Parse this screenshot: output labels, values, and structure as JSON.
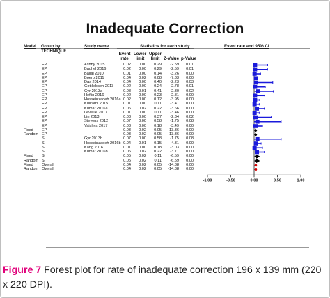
{
  "title": "Inadequate Correction",
  "headers": {
    "model": "Model",
    "group_by": "Group by",
    "technique": "TECHNIQUE",
    "study_name": "Study name",
    "stats_title": "Statistics for each study",
    "event_rate": "Event rate",
    "lower_limit": "Lower limit",
    "upper_limit": "Upper limit",
    "z_value": "Z-Value",
    "p_value": "p-Value",
    "plot_title": "Event rate and 95% CI"
  },
  "chart_data": {
    "type": "forest",
    "xlim": [
      -1.0,
      1.0
    ],
    "x_ticks": [
      "-1.00",
      "-0.50",
      "0.00",
      "0.50",
      "1.00"
    ],
    "rows": [
      {
        "model": "",
        "group": "EP",
        "study": "Ashby 2015",
        "rate": "0.02",
        "lower": "0.00",
        "upper": "0.29",
        "z": "-2.59",
        "p": "0.01",
        "marker": "square"
      },
      {
        "model": "",
        "group": "EP",
        "study": "Baghel 2016",
        "rate": "0.02",
        "lower": "0.00",
        "upper": "0.29",
        "z": "-2.59",
        "p": "0.01",
        "marker": "square"
      },
      {
        "model": "",
        "group": "EP",
        "study": "Ballal 2010",
        "rate": "0.01",
        "lower": "0.00",
        "upper": "0.14",
        "z": "-3.26",
        "p": "0.00",
        "marker": "square"
      },
      {
        "model": "",
        "group": "EP",
        "study": "Boero 2011",
        "rate": "0.04",
        "lower": "0.02",
        "upper": "0.08",
        "z": "-7.83",
        "p": "0.00",
        "marker": "square"
      },
      {
        "model": "",
        "group": "EP",
        "study": "Das 2014",
        "rate": "0.04",
        "lower": "0.00",
        "upper": "0.40",
        "z": "-2.23",
        "p": "0.03",
        "marker": "square"
      },
      {
        "model": "",
        "group": "EP",
        "study": "Gottliebsen 2013",
        "rate": "0.02",
        "lower": "0.00",
        "upper": "0.24",
        "z": "-2.78",
        "p": "0.01",
        "marker": "square"
      },
      {
        "model": "",
        "group": "EP",
        "study": "Gyr 2013a",
        "rate": "0.08",
        "lower": "0.01",
        "upper": "0.41",
        "z": "-2.30",
        "p": "0.02",
        "marker": "square"
      },
      {
        "model": "",
        "group": "EP",
        "study": "Heflin 2016",
        "rate": "0.02",
        "lower": "0.00",
        "upper": "0.23",
        "z": "-2.81",
        "p": "0.00",
        "marker": "square"
      },
      {
        "model": "",
        "group": "EP",
        "study": "Hosseinzadeh 2016a",
        "rate": "0.02",
        "lower": "0.00",
        "upper": "0.12",
        "z": "-3.95",
        "p": "0.00",
        "marker": "square"
      },
      {
        "model": "",
        "group": "EP",
        "study": "Kulkarni 2015",
        "rate": "0.01",
        "lower": "0.00",
        "upper": "0.11",
        "z": "-3.41",
        "p": "0.00",
        "marker": "square"
      },
      {
        "model": "",
        "group": "EP",
        "study": "Kumar 2016a",
        "rate": "0.06",
        "lower": "0.02",
        "upper": "0.22",
        "z": "-3.66",
        "p": "0.00",
        "marker": "square"
      },
      {
        "model": "",
        "group": "EP",
        "study": "Leveille 2017",
        "rate": "0.01",
        "lower": "0.00",
        "upper": "0.11",
        "z": "-3.46",
        "p": "0.00",
        "marker": "square"
      },
      {
        "model": "",
        "group": "EP",
        "study": "Lin 2013",
        "rate": "0.03",
        "lower": "0.00",
        "upper": "0.37",
        "z": "-2.34",
        "p": "0.02",
        "marker": "square"
      },
      {
        "model": "",
        "group": "EP",
        "study": "Stevens 2012",
        "rate": "0.07",
        "lower": "0.00",
        "upper": "0.58",
        "z": "-1.75",
        "p": "0.08",
        "marker": "square"
      },
      {
        "model": "",
        "group": "EP",
        "study": "Vaishya 2017",
        "rate": "0.03",
        "lower": "0.00",
        "upper": "0.18",
        "z": "-3.49",
        "p": "0.00",
        "marker": "square"
      },
      {
        "model": "Fixed",
        "group": "EP",
        "study": "",
        "rate": "0.03",
        "lower": "0.02",
        "upper": "0.05",
        "z": "-13.36",
        "p": "0.00",
        "marker": "diamond"
      },
      {
        "model": "Random",
        "group": "EP",
        "study": "",
        "rate": "0.03",
        "lower": "0.02",
        "upper": "0.05",
        "z": "-13.36",
        "p": "0.00",
        "marker": "diamond"
      },
      {
        "model": "",
        "group": "S",
        "study": "Gyr 2013b",
        "rate": "0.07",
        "lower": "0.00",
        "upper": "0.58",
        "z": "-1.75",
        "p": "0.08",
        "marker": "square"
      },
      {
        "model": "",
        "group": "S",
        "study": "Hosseinzadeh 2016b",
        "rate": "0.04",
        "lower": "0.01",
        "upper": "0.15",
        "z": "-4.31",
        "p": "0.00",
        "marker": "square"
      },
      {
        "model": "",
        "group": "S",
        "study": "Kang 2016",
        "rate": "0.01",
        "lower": "0.00",
        "upper": "0.18",
        "z": "-3.03",
        "p": "0.00",
        "marker": "square"
      },
      {
        "model": "",
        "group": "S",
        "study": "Kumar 2016b",
        "rate": "0.06",
        "lower": "0.02",
        "upper": "0.22",
        "z": "-3.71",
        "p": "0.00",
        "marker": "square"
      },
      {
        "model": "Fixed",
        "group": "S",
        "study": "",
        "rate": "0.05",
        "lower": "0.02",
        "upper": "0.11",
        "z": "-6.59",
        "p": "0.00",
        "marker": "diamond"
      },
      {
        "model": "Random",
        "group": "S",
        "study": "",
        "rate": "0.05",
        "lower": "0.02",
        "upper": "0.11",
        "z": "-6.59",
        "p": "0.00",
        "marker": "diamond"
      },
      {
        "model": "Fixed",
        "group": "Overall",
        "study": "",
        "rate": "0.04",
        "lower": "0.02",
        "upper": "0.05",
        "z": "-14.88",
        "p": "0.00",
        "marker": "diamond-red"
      },
      {
        "model": "Random",
        "group": "Overall",
        "study": "",
        "rate": "0.04",
        "lower": "0.02",
        "upper": "0.05",
        "z": "-14.88",
        "p": "0.00",
        "marker": "diamond-red"
      }
    ]
  },
  "caption": {
    "label": "Figure 7",
    "text": " Forest plot for rate of inadequate correction 196 x 139 mm (220 x 220 DPI)."
  },
  "colors": {
    "square": "#1a1adb",
    "diamond": "#000000",
    "diamond_red": "#d40000",
    "caption_label": "#e0007a"
  }
}
